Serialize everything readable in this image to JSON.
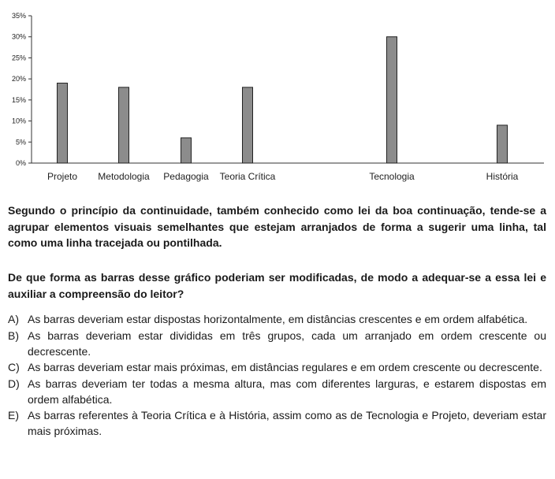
{
  "chart_data": {
    "type": "bar",
    "categories": [
      "Projeto",
      "Metodologia",
      "Pedagogia",
      "Teoria Crítica",
      "Tecnologia",
      "História"
    ],
    "values": [
      19,
      18,
      6,
      18,
      30,
      9
    ],
    "ylim": [
      0,
      35
    ],
    "yticks": [
      "0%",
      "5%",
      "10%",
      "15%",
      "20%",
      "25%",
      "30%",
      "35%"
    ],
    "ytick_values": [
      0,
      5,
      10,
      15,
      20,
      25,
      30,
      35
    ],
    "grid": false,
    "bar_color": "#8c8c8c"
  },
  "text": {
    "paragraph1": "Segundo o princípio da continuidade, também conhecido como lei da boa continuação, tende-se a agrupar elementos visuais semelhantes que estejam arranjados de forma a sugerir uma linha, tal como uma linha tracejada ou pontilhada.",
    "question": "De que forma as barras desse gráfico poderiam ser modificadas, de modo a adequar-se a essa lei e auxiliar a compreensão do leitor?"
  },
  "options": [
    {
      "letter": "A)",
      "text": "As barras deveriam estar dispostas horizontalmente, em distâncias crescentes e em ordem alfabética."
    },
    {
      "letter": "B)",
      "text": "As barras deveriam estar divididas em três grupos, cada um arranjado em ordem crescente ou decrescente."
    },
    {
      "letter": "C)",
      "text": "As barras deveriam estar mais próximas, em distâncias regulares e em ordem crescente ou decrescente."
    },
    {
      "letter": "D)",
      "text": "As barras deveriam ter todas a mesma altura, mas com diferentes larguras, e estarem dispostas em ordem alfabética."
    },
    {
      "letter": "E)",
      "text": "As barras referentes à Teoria Crítica e à História, assim como as de Tecnologia e Projeto, deveriam estar mais próximas."
    }
  ]
}
